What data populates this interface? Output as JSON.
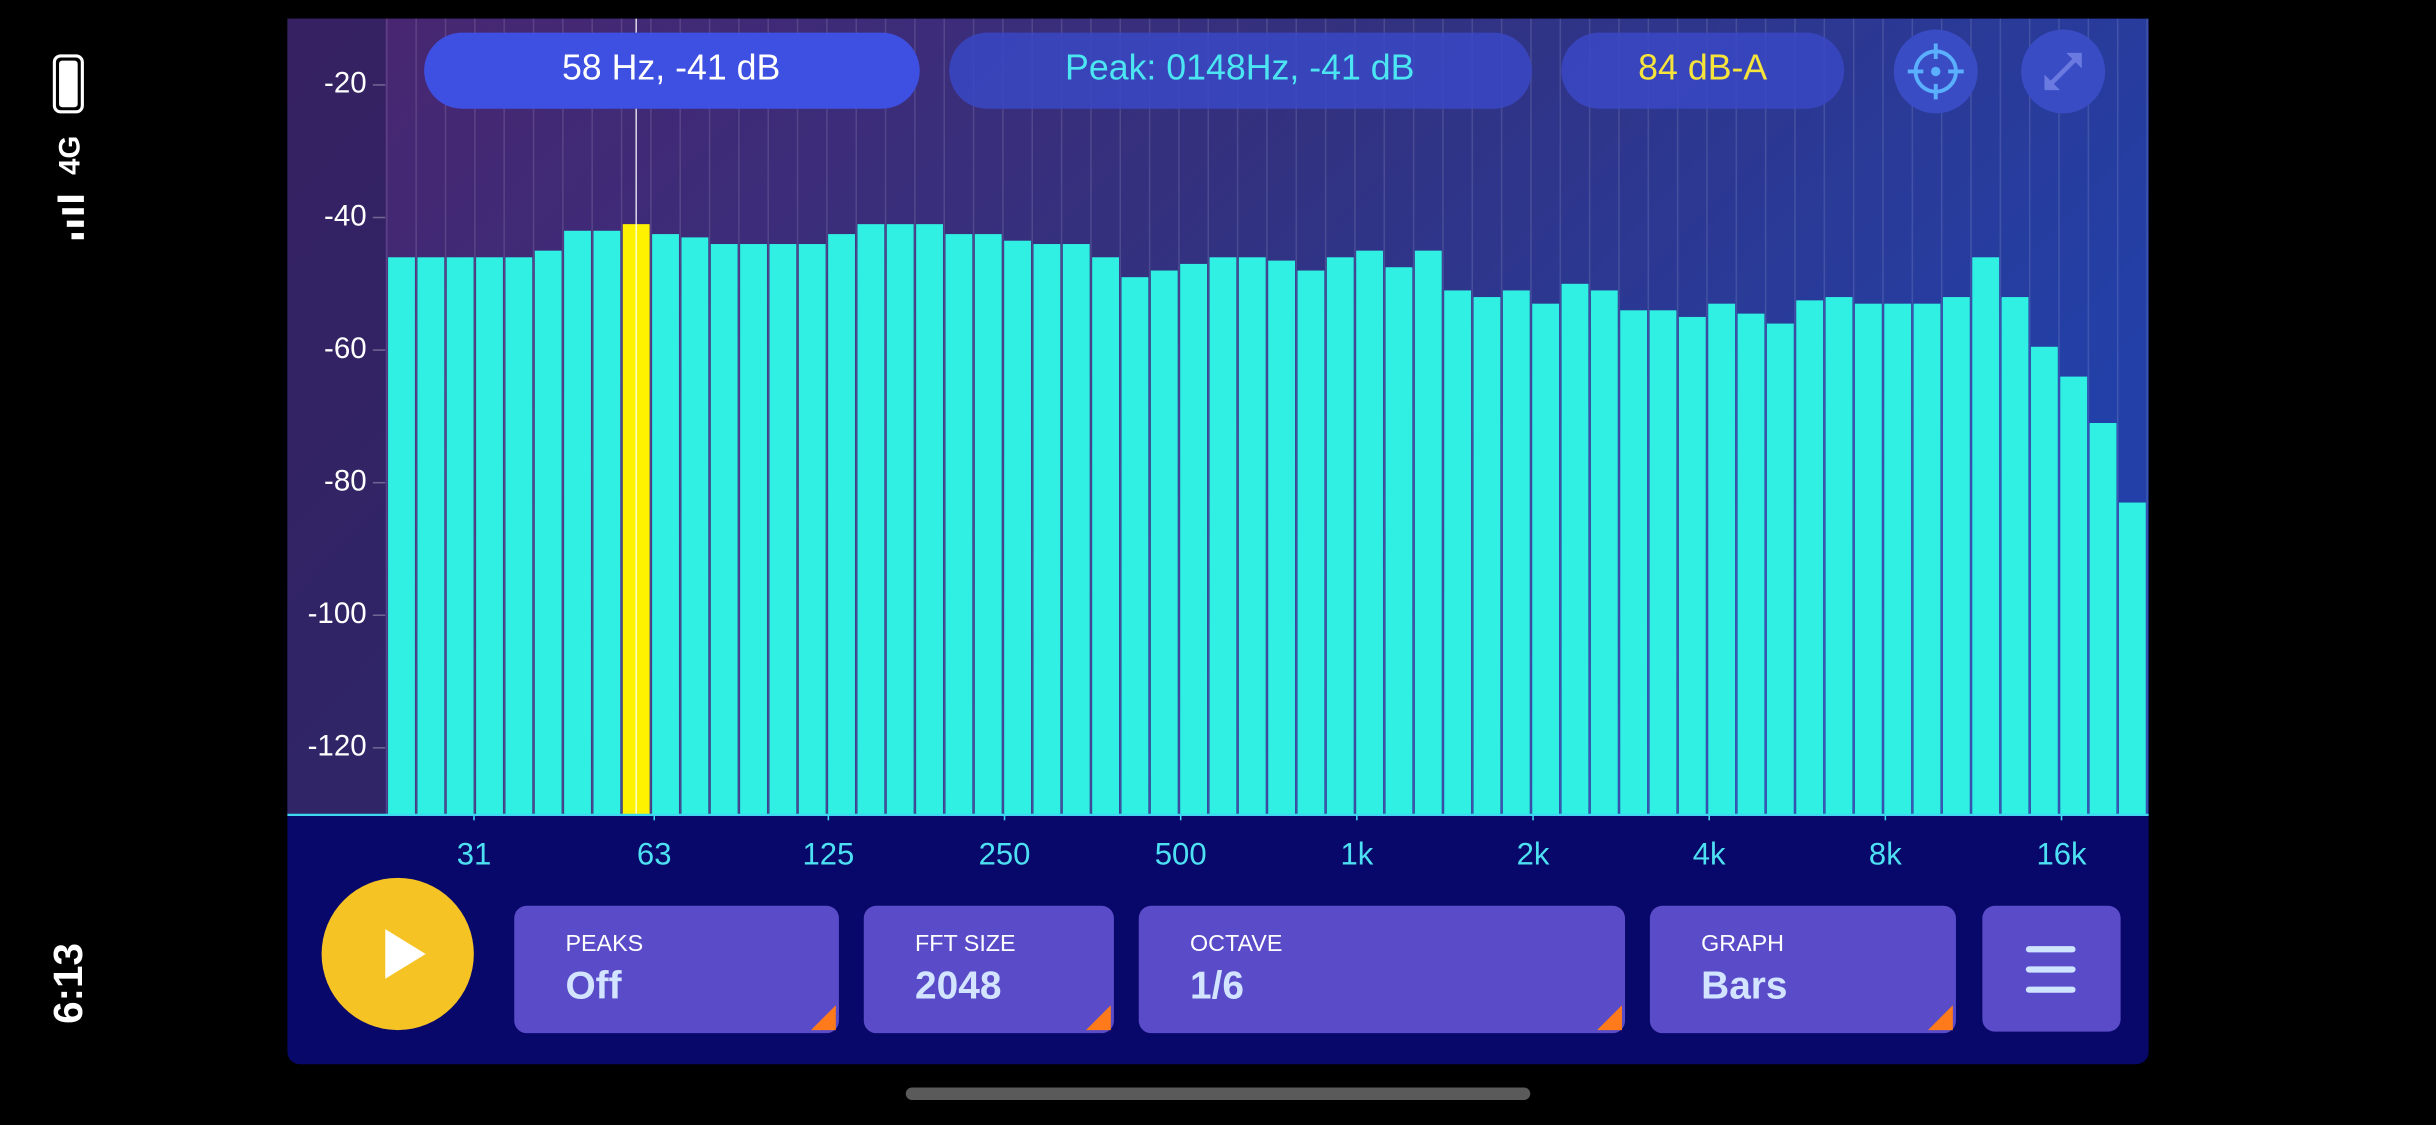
{
  "status_bar": {
    "time": "6:13",
    "network": "4G"
  },
  "readouts": {
    "cursor": "58 Hz, -41 dB",
    "peak": "Peak: 0148Hz, -41 dB",
    "level": "84 dB-A"
  },
  "chart_data": {
    "type": "bar",
    "categories": [
      null,
      null,
      null,
      null,
      null,
      null,
      null,
      null,
      null,
      null,
      null,
      null,
      null,
      null,
      null,
      null,
      null,
      null,
      null,
      null,
      null,
      null,
      null,
      null,
      null,
      null,
      null,
      null,
      null,
      null,
      null,
      null,
      null,
      null,
      null,
      null,
      null,
      null,
      null,
      null,
      null,
      null,
      null,
      null,
      null,
      null,
      null,
      null,
      null,
      null,
      null,
      null,
      null,
      null,
      null,
      null,
      null,
      null,
      null,
      null
    ],
    "values": [
      -46,
      -46,
      -46,
      -46,
      -46,
      -45,
      -42,
      -42,
      -41,
      -42.5,
      -43,
      -44,
      -44,
      -44,
      -44,
      -42.5,
      -41,
      -41,
      -41,
      -42.5,
      -42.5,
      -43.5,
      -44,
      -44,
      -46,
      -49,
      -48,
      -47,
      -46,
      -46,
      -46.5,
      -48,
      -46,
      -45,
      -47.5,
      -45,
      -51,
      -52,
      -51,
      -53,
      -50,
      -51,
      -54,
      -54,
      -55,
      -53,
      -54.5,
      -56,
      -52.5,
      -52,
      -53,
      -53,
      -53,
      -52,
      -46,
      -52,
      -59.5,
      -64,
      -71,
      -83
    ],
    "color": "#2ff0e2",
    "selected_index": 8,
    "selected_color": "#fff200",
    "ylim": [
      -130,
      -10
    ],
    "yticks": [
      -20,
      -40,
      -60,
      -80,
      -100,
      -120
    ],
    "xscale": "log",
    "xlim": [
      22,
      22400
    ],
    "xticks": [
      31,
      63,
      125,
      250,
      500,
      {
        "value": 1000,
        "label": "1k"
      },
      {
        "value": 2000,
        "label": "2k"
      },
      {
        "value": 4000,
        "label": "4k"
      },
      {
        "value": 8000,
        "label": "8k"
      },
      {
        "value": 16000,
        "label": "16k"
      }
    ]
  },
  "controls": [
    {
      "label": "PEAKS",
      "value": "Off"
    },
    {
      "label": "FFT SIZE",
      "value": "2048"
    },
    {
      "label": "OCTAVE",
      "value": "1/6"
    },
    {
      "label": "GRAPH",
      "value": "Bars"
    }
  ]
}
